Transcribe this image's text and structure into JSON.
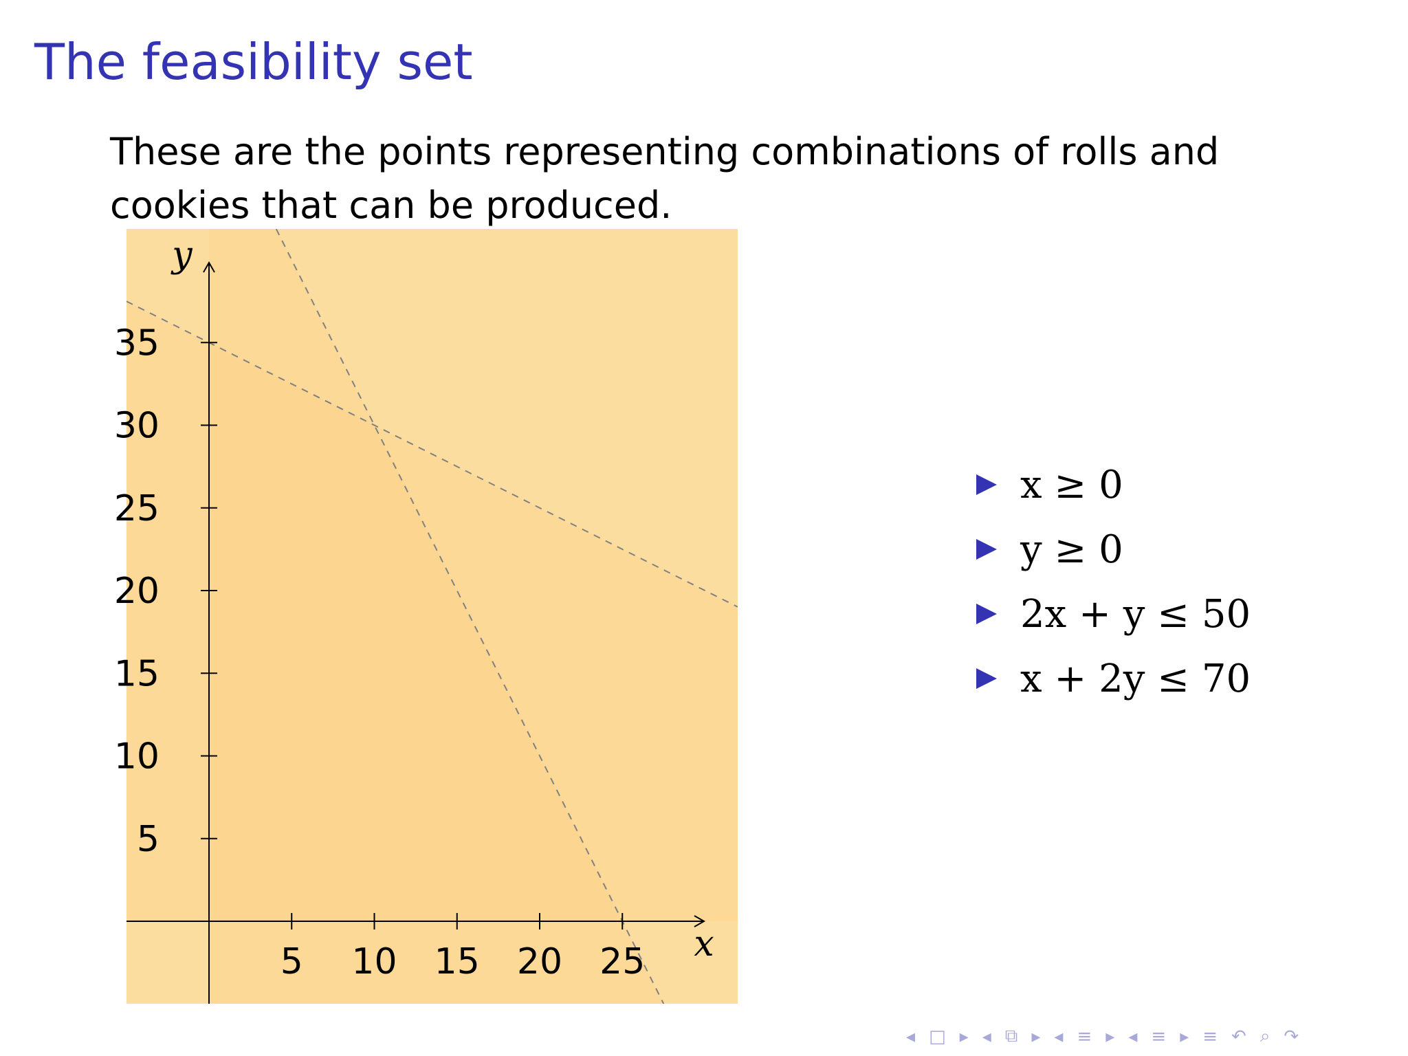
{
  "slide": {
    "title": "The feasibility set",
    "intro": "These are the points representing combinations of rolls and cookies that can be produced."
  },
  "constraints": [
    {
      "text": "x ≥ 0"
    },
    {
      "text": "y ≥ 0"
    },
    {
      "text": "2x + y ≤ 50"
    },
    {
      "text": "x + 2y ≤ 70"
    }
  ],
  "chart_data": {
    "type": "area",
    "xlabel": "x",
    "ylabel": "y",
    "xlim": [
      -5,
      32
    ],
    "ylim": [
      -5,
      37
    ],
    "x_ticks": [
      5,
      10,
      15,
      20,
      25
    ],
    "y_ticks": [
      5,
      10,
      15,
      20,
      25,
      30,
      35
    ],
    "lines": [
      {
        "equation": "2x + y = 50",
        "style": "dashed",
        "color": "#808080"
      },
      {
        "equation": "x + 2y = 70",
        "style": "dashed",
        "color": "#808080"
      }
    ],
    "feasible_region_vertices": [
      [
        0,
        0
      ],
      [
        25,
        0
      ],
      [
        10,
        30
      ],
      [
        0,
        35
      ]
    ],
    "fill_color": "#fdd17d",
    "grid": false
  },
  "nav": {
    "icons": [
      "arrow-left-icon",
      "frame-icon",
      "arrow-right-icon",
      "arrow-left-icon",
      "subsection-icon",
      "arrow-right-icon",
      "arrow-left-icon",
      "section-icon",
      "arrow-right-icon",
      "arrow-left-icon",
      "section-icon",
      "arrow-right-icon",
      "align-icon",
      "undo-icon",
      "search-icon",
      "redo-icon"
    ],
    "glyphs": [
      "◂",
      "□",
      "▸",
      "◂",
      "⧉",
      "▸",
      "◂",
      "≡",
      "▸",
      "◂",
      "≡",
      "▸",
      "≡",
      "↶",
      "⌕",
      "↷"
    ]
  }
}
